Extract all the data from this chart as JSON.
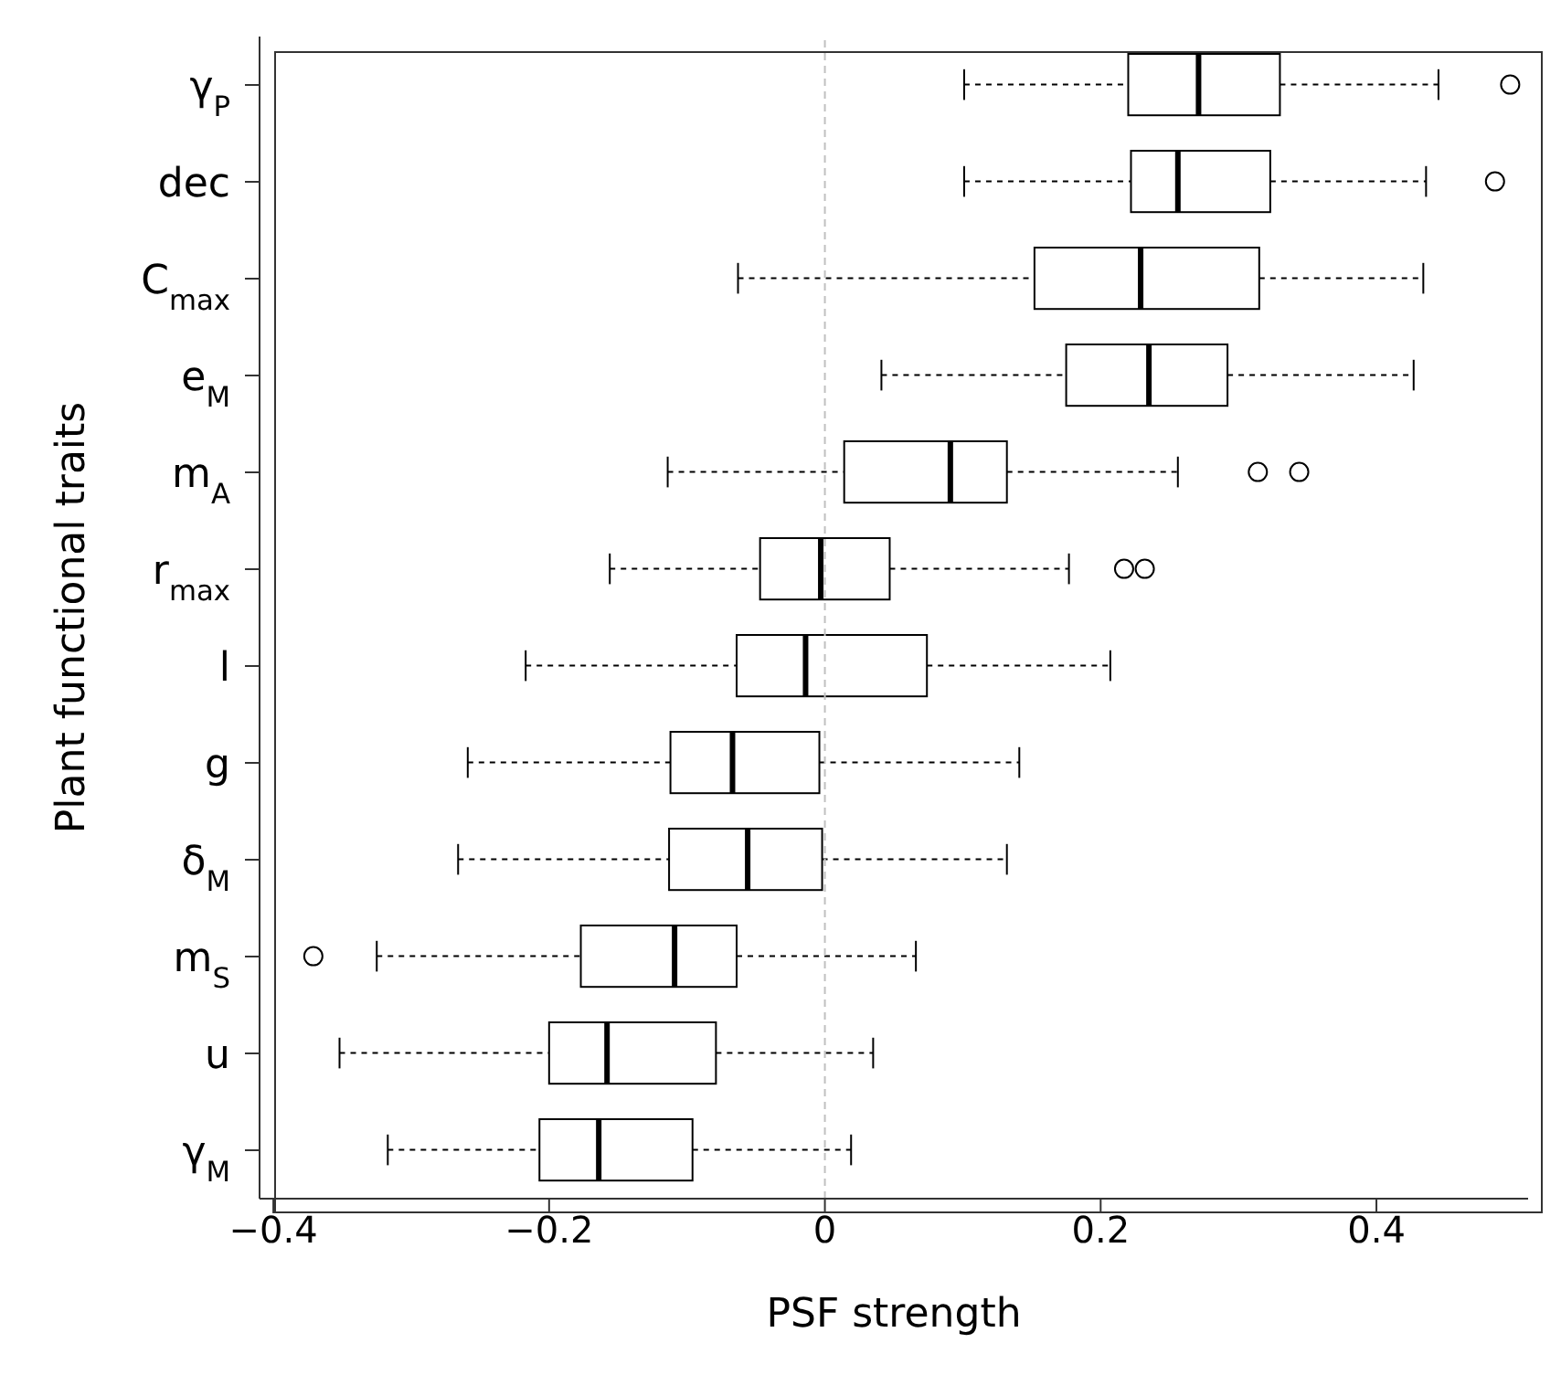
{
  "chart_data": {
    "type": "box",
    "orientation": "horizontal",
    "xlabel": "PSF strength",
    "ylabel": "Plant functional traits",
    "color": "#000000",
    "categories": [
      "γ$_{P}$",
      "dec",
      "C$_{max}$",
      "e$_{M}$",
      "m$_{A}$",
      "r$_{max}$",
      "l",
      "g",
      "δ$_{M}$",
      "m$_{S}$",
      "u",
      "γ$_{M}$"
    ],
    "boxes": [
      {
        "low": 0.101,
        "q1": 0.22,
        "median": 0.271,
        "q3": 0.33,
        "high": 0.445,
        "outliers": [
          0.497
        ]
      },
      {
        "low": 0.101,
        "q1": 0.222,
        "median": 0.256,
        "q3": 0.323,
        "high": 0.436,
        "outliers": [
          0.486
        ]
      },
      {
        "low": -0.063,
        "q1": 0.152,
        "median": 0.229,
        "q3": 0.315,
        "high": 0.434
      },
      {
        "low": 0.041,
        "q1": 0.175,
        "median": 0.235,
        "q3": 0.292,
        "high": 0.427
      },
      {
        "low": -0.114,
        "q1": 0.014,
        "median": 0.091,
        "q3": 0.132,
        "high": 0.256,
        "outliers": [
          0.314,
          0.344
        ]
      },
      {
        "low": -0.156,
        "q1": -0.047,
        "median": -0.003,
        "q3": 0.047,
        "high": 0.177,
        "outliers": [
          0.217,
          0.232
        ]
      },
      {
        "low": -0.217,
        "q1": -0.064,
        "median": -0.014,
        "q3": 0.074,
        "high": 0.207
      },
      {
        "low": -0.259,
        "q1": -0.112,
        "median": -0.067,
        "q3": -0.004,
        "high": 0.141
      },
      {
        "low": -0.266,
        "q1": -0.113,
        "median": -0.056,
        "q3": -0.002,
        "high": 0.132
      },
      {
        "low": -0.325,
        "q1": -0.177,
        "median": -0.109,
        "q3": -0.064,
        "high": 0.066,
        "outliers": [
          -0.371
        ]
      },
      {
        "low": -0.352,
        "q1": -0.2,
        "median": -0.158,
        "q3": -0.079,
        "high": 0.035
      },
      {
        "low": -0.317,
        "q1": -0.207,
        "median": -0.164,
        "q3": -0.096,
        "high": 0.019
      }
    ],
    "xlim": [
      -0.41,
      0.51
    ],
    "xticks": [
      {
        "value": -0.4,
        "label": "−0.4"
      },
      {
        "value": -0.2,
        "label": "−0.2"
      },
      0,
      0.2,
      0.4
    ],
    "ref_lines": [
      {
        "axis": "x",
        "value": 0,
        "color": "#c0c0c0",
        "line_style": "dashed"
      }
    ]
  }
}
